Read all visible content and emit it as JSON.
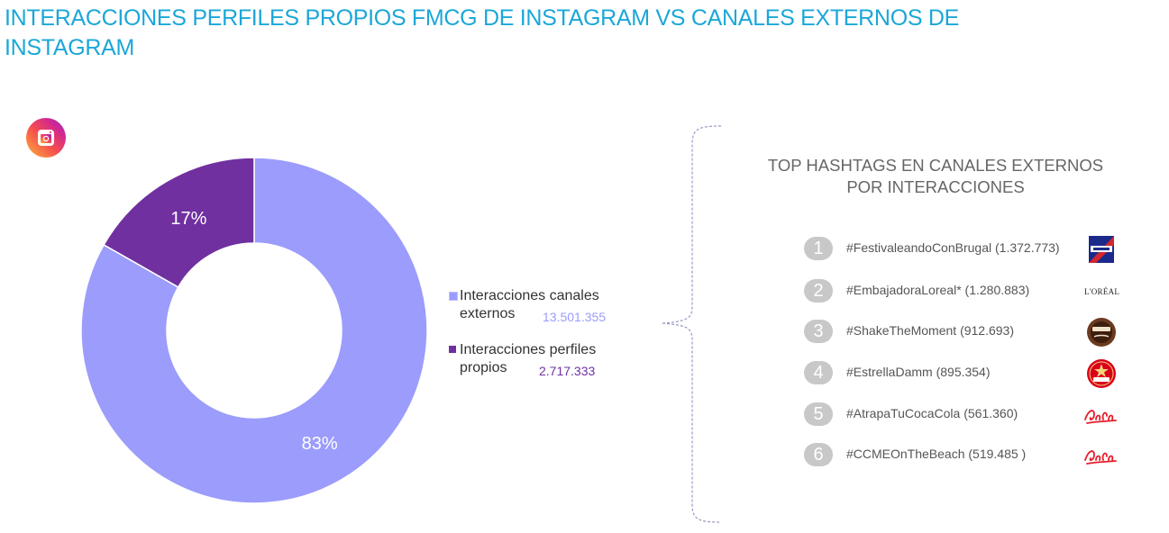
{
  "page": {
    "title": "INTERACCIONES PERFILES PROPIOS FMCG DE INSTAGRAM VS CANALES EXTERNOS DE INSTAGRAM",
    "platform_icon": "instagram-icon"
  },
  "chart_data": {
    "type": "pie",
    "title": "",
    "slices": [
      {
        "label": "Interacciones canales externos",
        "value": 13501355,
        "value_text": "13.501.355",
        "percent_text": "83%",
        "color": "#9b9cfc"
      },
      {
        "label": "Interacciones perfiles propios",
        "value": 2717333,
        "value_text": "2.717.333",
        "percent_text": "17%",
        "color": "#7030a0"
      }
    ],
    "legend": {
      "position": "right",
      "items": [
        {
          "label_line1": "Interacciones canales",
          "label_line2": "externos",
          "value_text": "13.501.355",
          "value_color": "#9b9cfc"
        },
        {
          "label_line1": "Interacciones perfiles",
          "label_line2": "propios",
          "value_text": "2.717.333",
          "value_color": "#7030a0"
        }
      ]
    }
  },
  "hashtags_panel": {
    "title_line1": "TOP HASHTAGS EN CANALES EXTERNOS",
    "title_line2": "POR INTERACCIONES",
    "items": [
      {
        "rank": "1",
        "text": "#FestivaleandoConBrugal (1.372.773)",
        "brand_icon": "brugal-logo"
      },
      {
        "rank": "2",
        "text": "#EmbajadoraLoreal* (1.280.883)",
        "brand_icon": "loreal-logo",
        "brand_text": "L'ORÉAL"
      },
      {
        "rank": "3",
        "text": "#ShakeTheMoment (912.693)",
        "brand_icon": "nescafe-logo"
      },
      {
        "rank": "4",
        "text": "#EstrellaDamm (895.354)",
        "brand_icon": "estrella-damm-logo"
      },
      {
        "rank": "5",
        "text": "#AtrapaTuCocaCola (561.360)",
        "brand_icon": "coca-cola-logo"
      },
      {
        "rank": "6",
        "text": "#CCMEOnTheBeach (519.485 )",
        "brand_icon": "coca-cola-logo"
      }
    ]
  },
  "colors": {
    "title": "#1ba7d8",
    "external": "#9b9cfc",
    "own": "#7030a0",
    "rank_circle": "#c8c8c8"
  }
}
